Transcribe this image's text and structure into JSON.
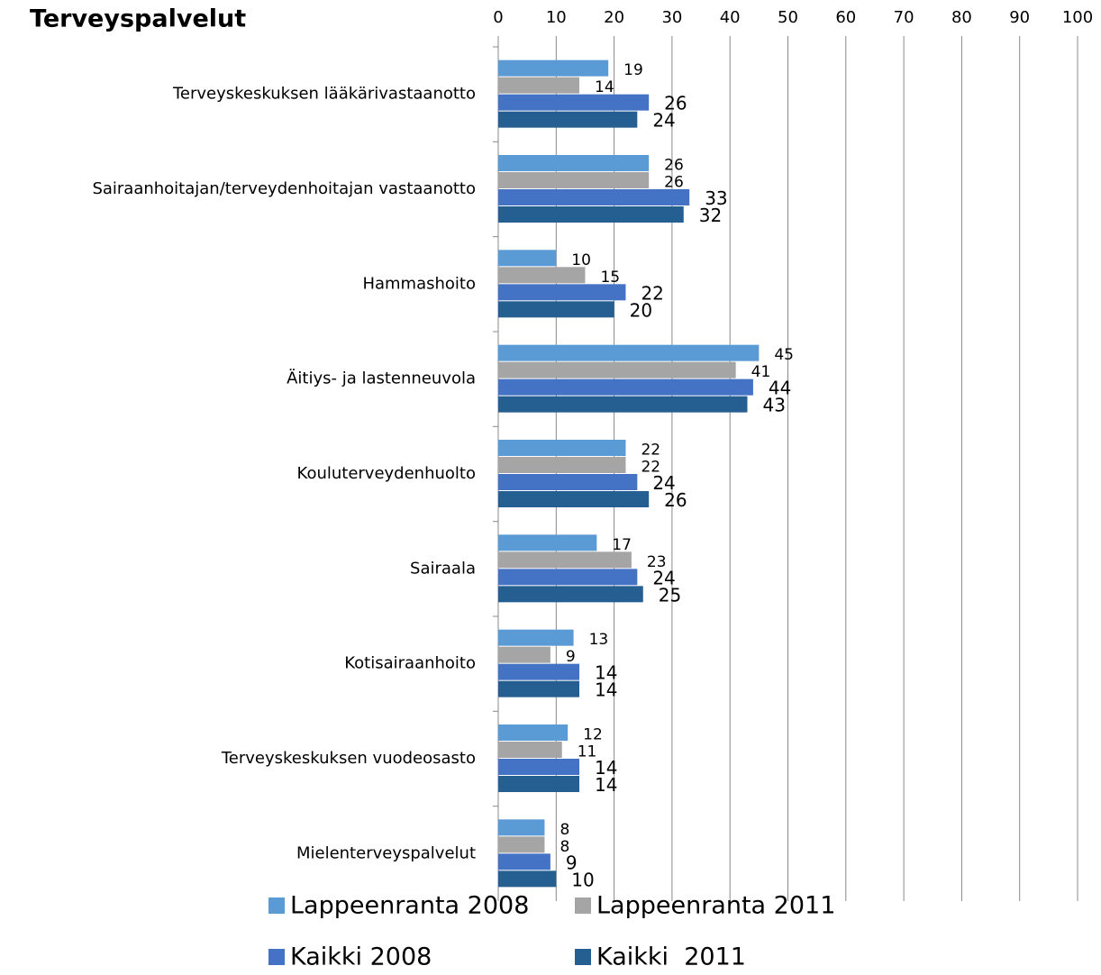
{
  "chart_data": {
    "type": "bar",
    "orientation": "horizontal",
    "title": "Terveyspalvelut",
    "categories": [
      "Terveyskeskuksen lääkärivastaanotto",
      "Sairaanhoitajan/terveydenhoitajan vastaanotto",
      "Hammashoito",
      "Äitiys- ja lastenneuvola",
      "Kouluterveydenhuolto",
      "Sairaala",
      "Kotisairaanhoito",
      "Terveyskeskuksen vuodeosasto",
      "Mielenterveyspalvelut"
    ],
    "series": [
      {
        "name": "Lappeenranta 2008",
        "color": "#5b9bd5",
        "values": [
          19,
          26,
          10,
          45,
          22,
          17,
          13,
          12,
          8
        ]
      },
      {
        "name": "Lappeenranta 2011",
        "color": "#a5a5a5",
        "values": [
          14,
          26,
          15,
          41,
          22,
          23,
          9,
          11,
          8
        ]
      },
      {
        "name": "Kaikki 2008",
        "color": "#4472c4",
        "values": [
          26,
          33,
          22,
          44,
          24,
          24,
          14,
          14,
          9
        ]
      },
      {
        "name": "Kaikki  2011",
        "color": "#255e91",
        "values": [
          24,
          32,
          20,
          43,
          26,
          25,
          14,
          14,
          10
        ]
      }
    ],
    "xlim": [
      0,
      100
    ],
    "xticks": [
      0,
      10,
      20,
      30,
      40,
      50,
      60,
      70,
      80,
      90,
      100
    ],
    "grid": true,
    "legend": "bottom"
  }
}
